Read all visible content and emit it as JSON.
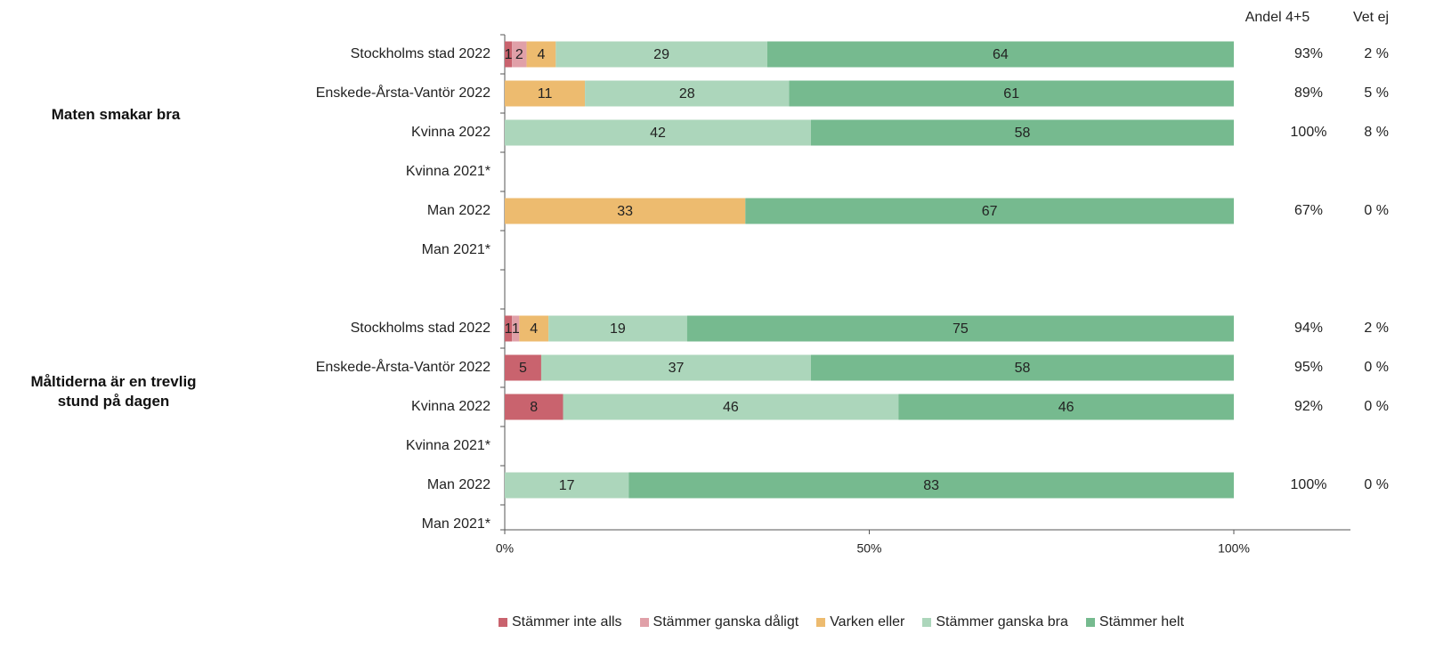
{
  "chart_data": {
    "type": "bar",
    "orientation": "horizontal",
    "stacked": true,
    "group_labels": [
      "Maten smakar bra",
      "Måltiderna är en trevlig stund på dagen"
    ],
    "categories": [
      "Stockholms stad 2022",
      "Enskede-Årsta-Vantör 2022",
      "Kvinna 2022",
      "Kvinna 2021*",
      "Man 2022",
      "Man 2021*",
      null,
      "Stockholms stad 2022",
      "Enskede-Årsta-Vantör 2022",
      "Kvinna 2022",
      "Kvinna 2021*",
      "Man 2022",
      "Man 2021*"
    ],
    "series": [
      {
        "name": "Stämmer inte alls",
        "color": "#c9636e",
        "values": [
          1,
          null,
          null,
          null,
          null,
          null,
          null,
          1,
          5,
          8,
          null,
          null,
          null
        ]
      },
      {
        "name": "Stämmer ganska dåligt",
        "color": "#e0a0a8",
        "values": [
          2,
          null,
          null,
          null,
          null,
          null,
          null,
          1,
          null,
          null,
          null,
          null,
          null
        ]
      },
      {
        "name": "Varken eller",
        "color": "#edbb6f",
        "values": [
          4,
          11,
          null,
          null,
          33,
          null,
          null,
          4,
          null,
          null,
          null,
          null,
          null
        ]
      },
      {
        "name": "Stämmer ganska bra",
        "color": "#acd6bb",
        "values": [
          29,
          28,
          42,
          null,
          null,
          null,
          null,
          19,
          37,
          46,
          null,
          17,
          null
        ]
      },
      {
        "name": "Stämmer helt",
        "color": "#76ba8f",
        "values": [
          64,
          61,
          58,
          null,
          67,
          null,
          null,
          75,
          58,
          46,
          null,
          83,
          null
        ]
      }
    ],
    "xlim": [
      0,
      116
    ],
    "xticks": [
      {
        "value": 0,
        "label": "0%"
      },
      {
        "value": 50,
        "label": "50%"
      },
      {
        "value": 100,
        "label": "100%"
      }
    ],
    "columns": [
      {
        "header": "Andel 4+5",
        "values": [
          "93%",
          "89%",
          "100%",
          null,
          "67%",
          null,
          null,
          "94%",
          "95%",
          "92%",
          null,
          "100%",
          null
        ]
      },
      {
        "header": "Vet ej",
        "values": [
          "2 %",
          "5 %",
          "8 %",
          null,
          "0 %",
          null,
          null,
          "2 %",
          "0 %",
          "0 %",
          null,
          "0 %",
          null
        ]
      }
    ],
    "legend": "bottom"
  }
}
